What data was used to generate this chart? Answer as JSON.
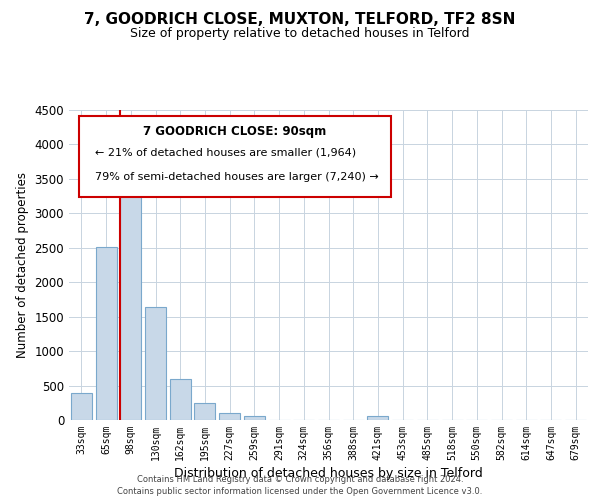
{
  "title": "7, GOODRICH CLOSE, MUXTON, TELFORD, TF2 8SN",
  "subtitle": "Size of property relative to detached houses in Telford",
  "xlabel": "Distribution of detached houses by size in Telford",
  "ylabel": "Number of detached properties",
  "categories": [
    "33sqm",
    "65sqm",
    "98sqm",
    "130sqm",
    "162sqm",
    "195sqm",
    "227sqm",
    "259sqm",
    "291sqm",
    "324sqm",
    "356sqm",
    "388sqm",
    "421sqm",
    "453sqm",
    "485sqm",
    "518sqm",
    "550sqm",
    "582sqm",
    "614sqm",
    "647sqm",
    "679sqm"
  ],
  "values": [
    390,
    2510,
    3740,
    1640,
    600,
    240,
    100,
    60,
    0,
    0,
    0,
    0,
    60,
    0,
    0,
    0,
    0,
    0,
    0,
    0,
    0
  ],
  "bar_color": "#c8d8e8",
  "bar_edge_color": "#7aa8cc",
  "red_line_color": "#cc0000",
  "ylim": [
    0,
    4500
  ],
  "yticks": [
    0,
    500,
    1000,
    1500,
    2000,
    2500,
    3000,
    3500,
    4000,
    4500
  ],
  "annotation_title": "7 GOODRICH CLOSE: 90sqm",
  "annotation_line1": "← 21% of detached houses are smaller (1,964)",
  "annotation_line2": "79% of semi-detached houses are larger (7,240) →",
  "annotation_box_color": "#ffffff",
  "annotation_box_edge": "#cc0000",
  "footer_line1": "Contains HM Land Registry data © Crown copyright and database right 2024.",
  "footer_line2": "Contains public sector information licensed under the Open Government Licence v3.0.",
  "background_color": "#ffffff",
  "grid_color": "#c8d4e0"
}
